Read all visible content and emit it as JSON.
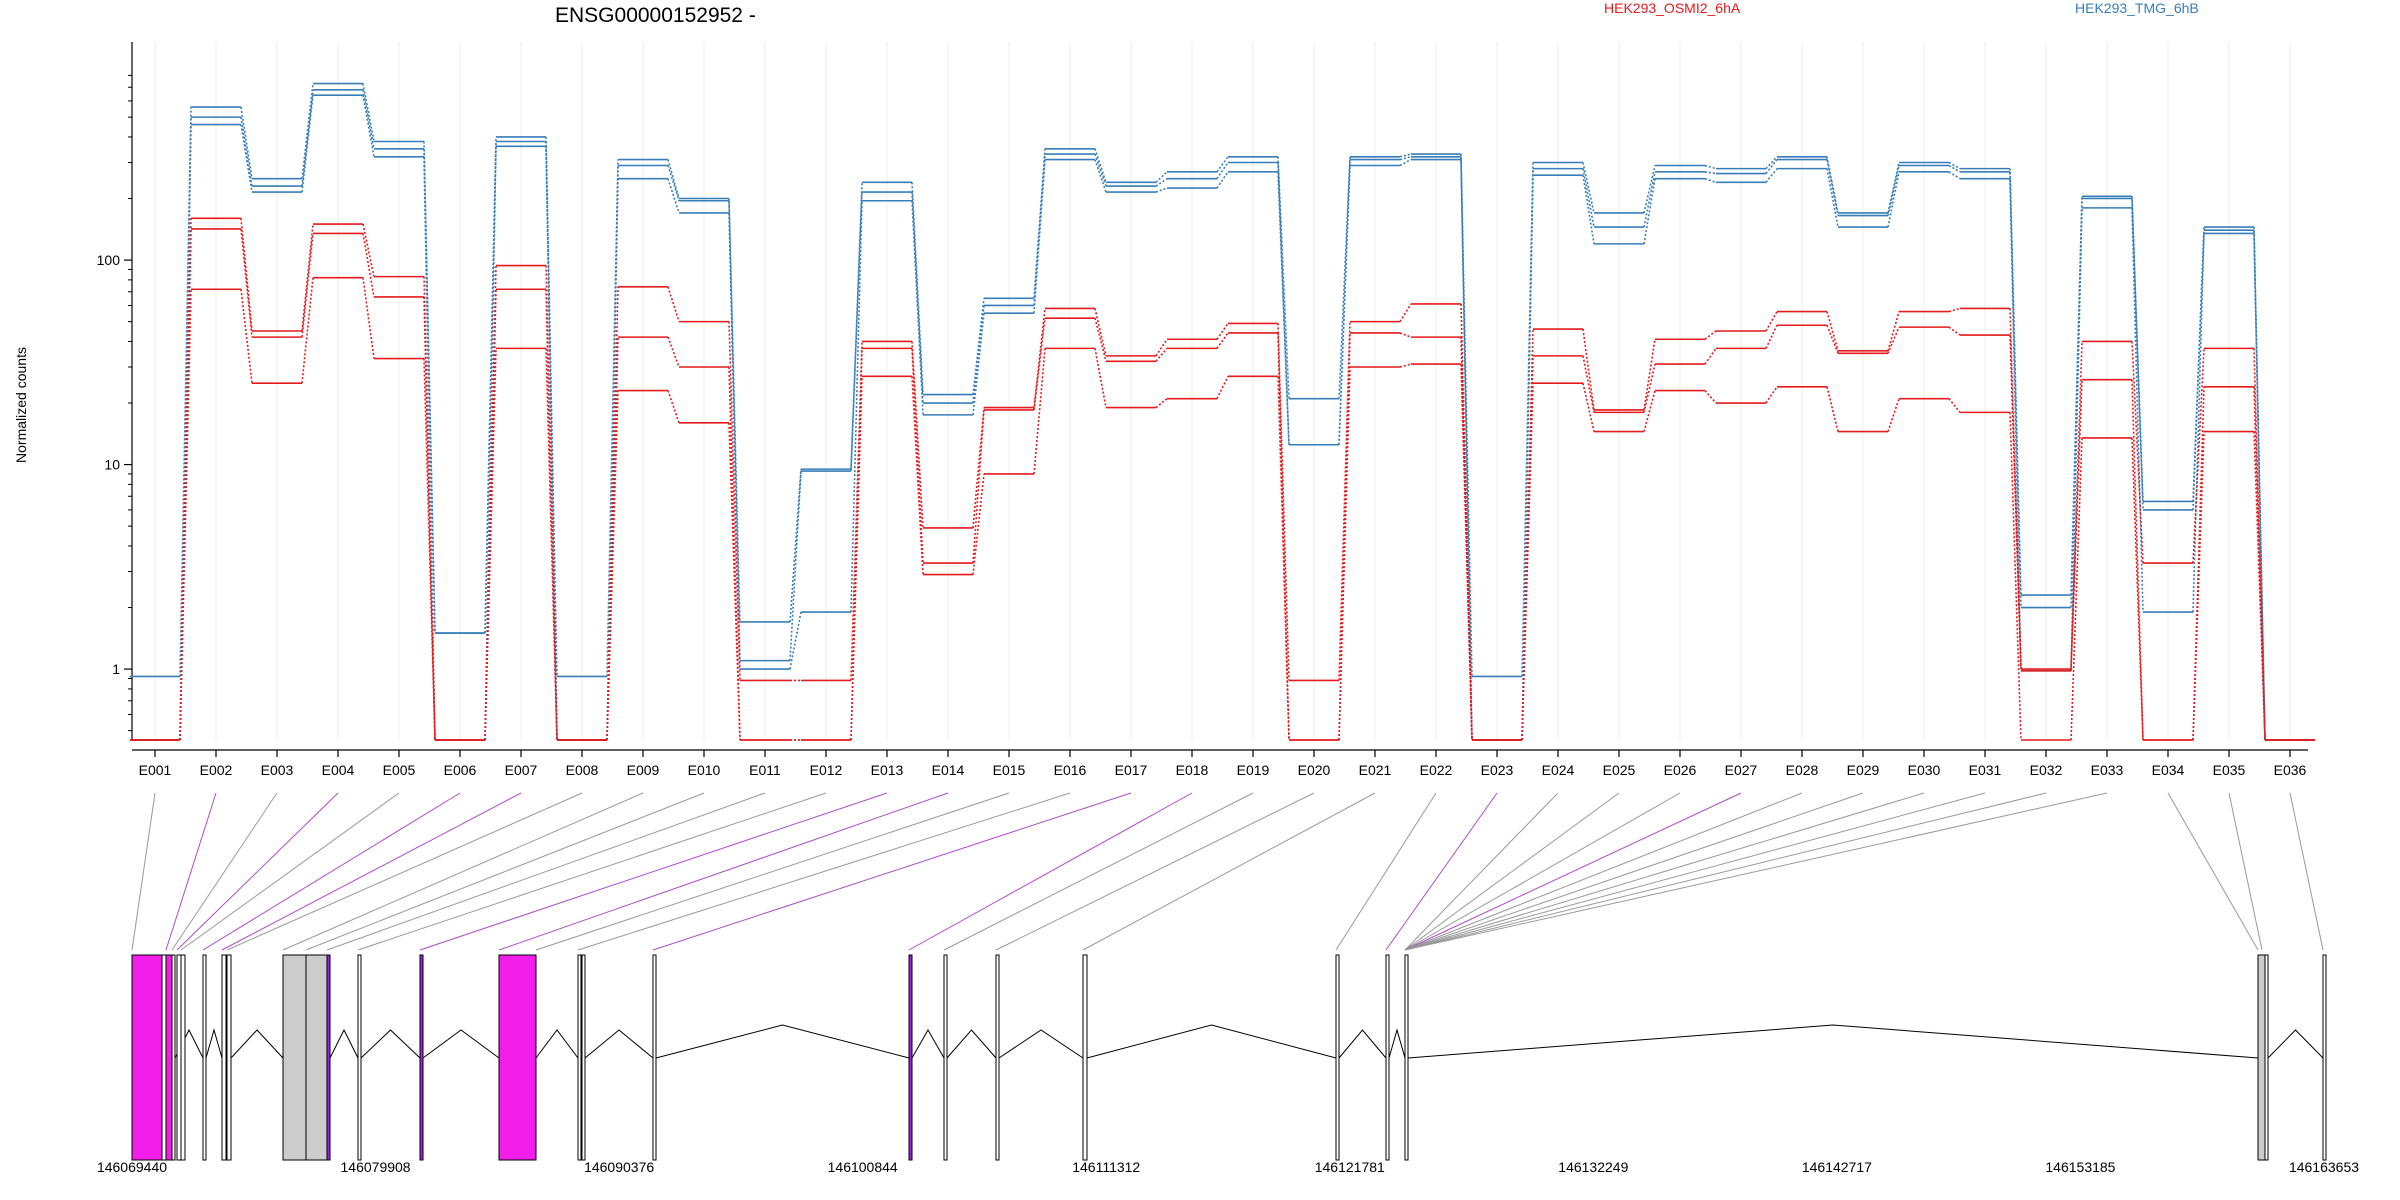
{
  "chart_data": {
    "type": "line",
    "title": "ENSG00000152952 -",
    "ylabel": "Normalized counts",
    "xlabel": "",
    "yscale": "log",
    "ylim": [
      0.45,
      850
    ],
    "yticks": [
      1,
      10,
      100
    ],
    "ytick_labels": [
      "1",
      "10",
      "100"
    ],
    "grid": "vertical light gridlines at exon bins",
    "legend": {
      "placement": "top-right",
      "entries": [
        {
          "name": "HEK293_OSMI2_6hA",
          "color": "#e41a1c"
        },
        {
          "name": "HEK293_TMG_6hB",
          "color": "#377eb8"
        }
      ]
    },
    "categories": [
      "E001",
      "E002",
      "E003",
      "E004",
      "E005",
      "E006",
      "E007",
      "E008",
      "E009",
      "E010",
      "E011",
      "E012",
      "E013",
      "E014",
      "E015",
      "E016",
      "E017",
      "E018",
      "E019",
      "E020",
      "E021",
      "E022",
      "E023",
      "E024",
      "E025",
      "E026",
      "E027",
      "E028",
      "E029",
      "E030",
      "E031",
      "E032",
      "E033",
      "E034",
      "E035",
      "E036"
    ],
    "series": [
      {
        "group": "HEK293_TMG_6hB",
        "color": "#377eb8",
        "values": [
          0.92,
          560,
          250,
          730,
          380,
          1.5,
          400,
          0.92,
          310,
          200,
          1.7,
          9.5,
          240,
          22,
          65,
          350,
          240,
          270,
          320,
          21,
          320,
          330,
          0.92,
          300,
          170,
          290,
          280,
          320,
          170,
          300,
          280,
          2.3,
          205,
          6.6,
          145,
          0.45
        ]
      },
      {
        "group": "HEK293_TMG_6hB",
        "color": "#377eb8",
        "values": [
          0.45,
          500,
          230,
          680,
          350,
          1.5,
          380,
          0.45,
          290,
          195,
          1.1,
          9.3,
          215,
          20,
          60,
          330,
          230,
          250,
          300,
          12.5,
          310,
          320,
          0.45,
          280,
          145,
          270,
          265,
          310,
          165,
          290,
          270,
          2.0,
          200,
          6.0,
          140,
          0.45
        ]
      },
      {
        "group": "HEK293_TMG_6hB",
        "color": "#377eb8",
        "values": [
          0.45,
          460,
          215,
          640,
          320,
          0.45,
          360,
          0.45,
          250,
          170,
          1.0,
          1.9,
          195,
          17.5,
          55,
          310,
          215,
          225,
          270,
          12.5,
          290,
          310,
          0.45,
          260,
          120,
          250,
          240,
          280,
          145,
          270,
          250,
          0.98,
          180,
          1.9,
          135,
          0.45
        ]
      },
      {
        "group": "HEK293_OSMI2_6hA",
        "color": "#e41a1c",
        "values": [
          0.45,
          160,
          45,
          150,
          83,
          0.45,
          94,
          0.45,
          74,
          50,
          0.88,
          0.88,
          40,
          4.9,
          19,
          58,
          34,
          41,
          49,
          0.88,
          50,
          61,
          0.45,
          46,
          18.5,
          41,
          45,
          56,
          36,
          56,
          58,
          1.0,
          40,
          3.3,
          37,
          0.45
        ]
      },
      {
        "group": "HEK293_OSMI2_6hA",
        "color": "#e41a1c",
        "values": [
          0.45,
          142,
          42,
          135,
          66,
          0.45,
          72,
          0.45,
          42,
          30,
          0.45,
          0.45,
          37,
          3.3,
          18.5,
          52,
          32,
          37,
          44,
          0.45,
          44,
          42,
          0.45,
          34,
          18,
          31,
          37,
          48,
          35,
          47,
          43,
          0.98,
          26,
          0.45,
          24,
          0.45
        ]
      },
      {
        "group": "HEK293_OSMI2_6hA",
        "color": "#e41a1c",
        "values": [
          0.45,
          72,
          25,
          82,
          33,
          0.45,
          37,
          0.45,
          23,
          16,
          0.45,
          0.45,
          27,
          2.9,
          9,
          37,
          19,
          21,
          27,
          0.45,
          30,
          31,
          0.45,
          25,
          14.5,
          23,
          20,
          24,
          14.5,
          21,
          18,
          0.45,
          13.5,
          0.45,
          14.5,
          0.45
        ]
      }
    ],
    "gene_model": {
      "genomic_ticks": [
        "146069440",
        "146079908",
        "146090376",
        "146100844",
        "146111312",
        "146121781",
        "146132249",
        "146142717",
        "146153185",
        "146163653"
      ]
    }
  }
}
